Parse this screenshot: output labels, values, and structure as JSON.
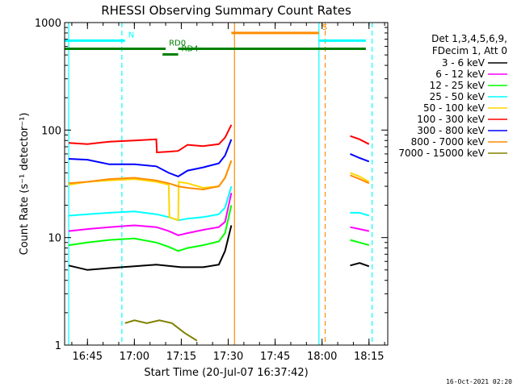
{
  "chart_data": {
    "type": "line",
    "title": "RHESSI Observing Summary Count Rates",
    "xlabel": "Start Time (20-Jul-07 16:37:42)",
    "ylabel": "Count Rate (s⁻¹ detector⁻¹)",
    "x_scale": "time",
    "xlim": [
      "16:37:42",
      "18:21:00"
    ],
    "x_ticks": [
      "16:45",
      "17:00",
      "17:15",
      "17:30",
      "17:45",
      "18:00",
      "18:15"
    ],
    "y_scale": "log",
    "ylim": [
      1,
      1000
    ],
    "y_tick_labels": [
      "1",
      "10",
      "100",
      "1000"
    ],
    "legend_header": [
      "Det 1,3,4,5,6,9,",
      "FDecim 1, Att 0"
    ],
    "legend_placement": "right",
    "series": [
      {
        "name": "3 - 6 keV",
        "color": "#000000",
        "points": [
          [
            "16:39",
            5.5
          ],
          [
            "16:45",
            5.0
          ],
          [
            "16:52",
            5.2
          ],
          [
            "17:00",
            5.4
          ],
          [
            "17:07",
            5.6
          ],
          [
            "17:15",
            5.3
          ],
          [
            "17:22",
            5.3
          ],
          [
            "17:27",
            5.6
          ],
          [
            "17:29",
            7.5
          ],
          [
            "17:31",
            13
          ],
          [
            "18:09",
            5.5
          ],
          [
            "18:12",
            5.8
          ],
          [
            "18:15",
            5.4
          ]
        ]
      },
      {
        "name": "6 - 12 keV",
        "color": "#ff00ff",
        "points": [
          [
            "16:39",
            11.5
          ],
          [
            "16:45",
            12
          ],
          [
            "16:52",
            12.5
          ],
          [
            "17:00",
            13
          ],
          [
            "17:07",
            12.5
          ],
          [
            "17:11",
            11.5
          ],
          [
            "17:14",
            10.5
          ],
          [
            "17:17",
            11
          ],
          [
            "17:22",
            11.8
          ],
          [
            "17:27",
            12.5
          ],
          [
            "17:29",
            14
          ],
          [
            "17:31",
            26
          ],
          [
            "18:09",
            12.5
          ],
          [
            "18:12",
            12
          ],
          [
            "18:15",
            11.5
          ]
        ]
      },
      {
        "name": "12 - 25 keV",
        "color": "#00ff00",
        "points": [
          [
            "16:39",
            8.5
          ],
          [
            "16:45",
            9
          ],
          [
            "16:52",
            9.5
          ],
          [
            "17:00",
            9.8
          ],
          [
            "17:07",
            9.0
          ],
          [
            "17:11",
            8.2
          ],
          [
            "17:14",
            7.5
          ],
          [
            "17:17",
            8.0
          ],
          [
            "17:22",
            8.5
          ],
          [
            "17:27",
            9.2
          ],
          [
            "17:29",
            11
          ],
          [
            "17:31",
            20
          ],
          [
            "18:09",
            9.5
          ],
          [
            "18:12",
            9.0
          ],
          [
            "18:15",
            8.5
          ]
        ]
      },
      {
        "name": "25 - 50 keV",
        "color": "#00ffff",
        "points": [
          [
            "16:39",
            16
          ],
          [
            "16:45",
            16.5
          ],
          [
            "16:52",
            17
          ],
          [
            "17:00",
            17.5
          ],
          [
            "17:07",
            16.5
          ],
          [
            "17:11",
            15.5
          ],
          [
            "17:14",
            14.5
          ],
          [
            "17:17",
            15.0
          ],
          [
            "17:22",
            15.5
          ],
          [
            "17:27",
            16.5
          ],
          [
            "17:29",
            19
          ],
          [
            "17:31",
            30
          ],
          [
            "18:09",
            17
          ],
          [
            "18:12",
            17
          ],
          [
            "18:15",
            16
          ]
        ]
      },
      {
        "name": "50 - 100 keV",
        "color": "#ffd700",
        "points": [
          [
            "16:39",
            31
          ],
          [
            "16:45",
            33
          ],
          [
            "16:52",
            34
          ],
          [
            "17:00",
            35
          ],
          [
            "17:07",
            33
          ],
          [
            "17:11",
            31
          ],
          [
            "17:11.2",
            15.5
          ],
          [
            "17:14",
            14.5
          ],
          [
            "17:14.2",
            33
          ],
          [
            "17:17",
            32
          ],
          [
            "17:22",
            29
          ],
          [
            "17:27",
            30
          ],
          [
            "17:29",
            36
          ],
          [
            "17:31",
            52
          ],
          [
            "18:09",
            40
          ],
          [
            "18:12",
            37
          ],
          [
            "18:15",
            33
          ]
        ]
      },
      {
        "name": "100 - 300 keV",
        "color": "#ff0000",
        "points": [
          [
            "16:39",
            76
          ],
          [
            "16:45",
            74
          ],
          [
            "16:52",
            78
          ],
          [
            "17:00",
            80
          ],
          [
            "17:07",
            82
          ],
          [
            "17:07.2",
            62
          ],
          [
            "17:11",
            63
          ],
          [
            "17:14",
            64
          ],
          [
            "17:17",
            73
          ],
          [
            "17:22",
            71
          ],
          [
            "17:27",
            74
          ],
          [
            "17:29",
            85
          ],
          [
            "17:31",
            112
          ],
          [
            "18:09",
            88
          ],
          [
            "18:12",
            82
          ],
          [
            "18:15",
            74
          ]
        ]
      },
      {
        "name": "300 - 800 keV",
        "color": "#0000ff",
        "points": [
          [
            "16:39",
            54
          ],
          [
            "16:45",
            53
          ],
          [
            "16:52",
            48
          ],
          [
            "17:00",
            48
          ],
          [
            "17:07",
            46
          ],
          [
            "17:11",
            40
          ],
          [
            "17:14",
            37
          ],
          [
            "17:17",
            42
          ],
          [
            "17:22",
            45
          ],
          [
            "17:27",
            49
          ],
          [
            "17:29",
            58
          ],
          [
            "17:31",
            82
          ],
          [
            "18:09",
            60
          ],
          [
            "18:12",
            55
          ],
          [
            "18:15",
            51
          ]
        ]
      },
      {
        "name": "800 - 7000 keV",
        "color": "#ff8c00",
        "points": [
          [
            "16:39",
            32
          ],
          [
            "16:45",
            33
          ],
          [
            "16:52",
            35
          ],
          [
            "17:00",
            36
          ],
          [
            "17:07",
            34
          ],
          [
            "17:11",
            32
          ],
          [
            "17:14",
            30
          ],
          [
            "17:17",
            29
          ],
          [
            "17:22",
            28
          ],
          [
            "17:27",
            30
          ],
          [
            "17:29",
            36
          ],
          [
            "17:31",
            52
          ],
          [
            "18:09",
            38
          ],
          [
            "18:12",
            35
          ],
          [
            "18:15",
            32
          ]
        ]
      },
      {
        "name": "7000 - 15000 keV",
        "color": "#808000",
        "points": [
          [
            "16:57",
            1.6
          ],
          [
            "17:00",
            1.7
          ],
          [
            "17:04",
            1.6
          ],
          [
            "17:08",
            1.7
          ],
          [
            "17:12",
            1.6
          ],
          [
            "17:16",
            1.3
          ],
          [
            "17:20",
            1.1
          ]
        ]
      }
    ],
    "flag_lines": [
      {
        "label": "N",
        "color": "#00ffff",
        "segments": [
          [
            "16:37:42",
            "16:57"
          ],
          [
            "17:59",
            "18:14"
          ]
        ],
        "level": 680
      },
      {
        "label": "S",
        "color": "#ff8c00",
        "segments": [
          [
            "17:31",
            "17:59"
          ]
        ],
        "level": 800
      },
      {
        "label": "RD0",
        "color": "#008000",
        "segments": [
          [
            "16:37:42",
            "17:10"
          ],
          [
            "17:14",
            "18:14"
          ]
        ],
        "level": 570
      },
      {
        "label": "RD4",
        "color": "#008000",
        "segments": [
          [
            "17:09",
            "17:14"
          ]
        ],
        "level": 505
      }
    ],
    "vertical_markers": [
      {
        "time": "16:39",
        "color": "#00ffff",
        "style": "solid"
      },
      {
        "time": "16:56",
        "color": "#00ffff",
        "style": "dashed"
      },
      {
        "time": "17:32",
        "color": "#ff8c00",
        "style": "solid"
      },
      {
        "time": "17:59",
        "color": "#00ffff",
        "style": "solid"
      },
      {
        "time": "18:01",
        "color": "#ff8c00",
        "style": "dashed"
      },
      {
        "time": "18:16",
        "color": "#00ffff",
        "style": "dashed"
      }
    ]
  },
  "footer": {
    "date": "16-Oct-2021 02:20"
  }
}
